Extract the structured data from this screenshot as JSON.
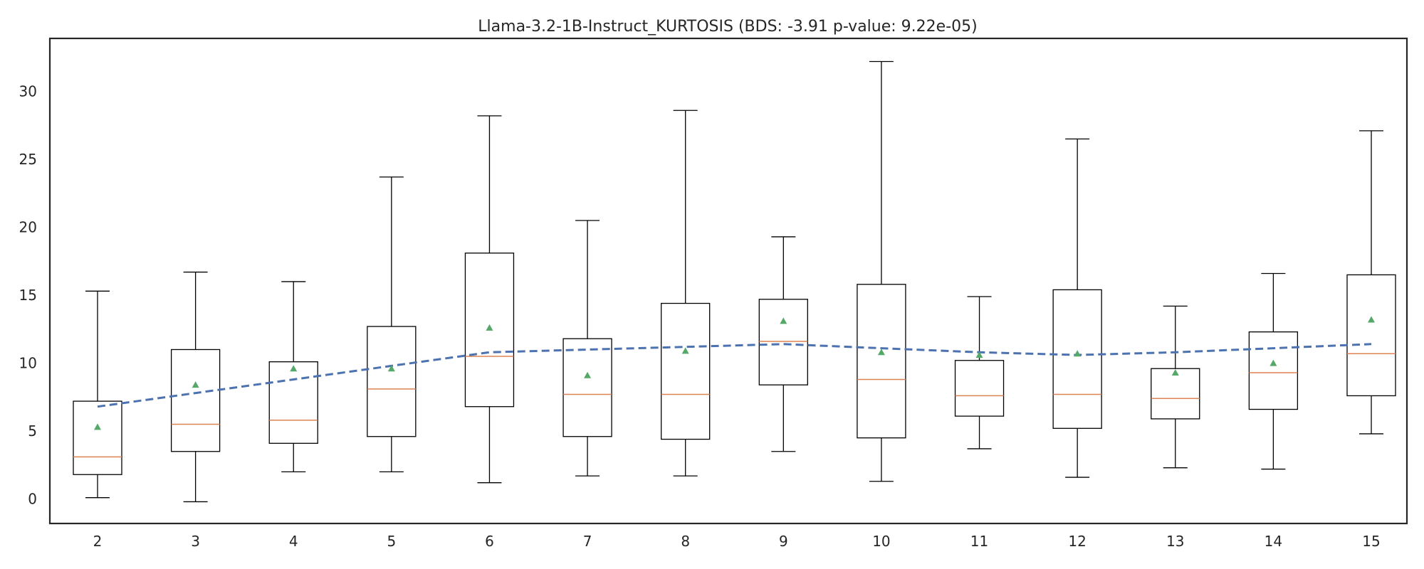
{
  "chart_data": {
    "type": "box",
    "title": "Llama-3.2-1B-Instruct_KURTOSIS (BDS: -3.91 p-value: 9.22e-05)",
    "xlabel": "",
    "ylabel": "",
    "ylim": [
      -1.8,
      33.9
    ],
    "yticks": [
      0,
      5,
      10,
      15,
      20,
      25,
      30
    ],
    "grid": false,
    "categories": [
      "2",
      "3",
      "4",
      "5",
      "6",
      "7",
      "8",
      "9",
      "10",
      "11",
      "12",
      "13",
      "14",
      "15"
    ],
    "boxes": [
      {
        "x": "2",
        "whisker_low": 0.1,
        "q1": 1.8,
        "median": 3.1,
        "q3": 7.2,
        "whisker_high": 15.3,
        "mean": 5.3
      },
      {
        "x": "3",
        "whisker_low": -0.2,
        "q1": 3.5,
        "median": 5.5,
        "q3": 11.0,
        "whisker_high": 16.7,
        "mean": 8.4
      },
      {
        "x": "4",
        "whisker_low": 2.0,
        "q1": 4.1,
        "median": 5.8,
        "q3": 10.1,
        "whisker_high": 16.0,
        "mean": 9.6
      },
      {
        "x": "5",
        "whisker_low": 2.0,
        "q1": 4.6,
        "median": 8.1,
        "q3": 12.7,
        "whisker_high": 23.7,
        "mean": 9.6
      },
      {
        "x": "6",
        "whisker_low": 1.2,
        "q1": 6.8,
        "median": 10.5,
        "q3": 18.1,
        "whisker_high": 28.2,
        "mean": 12.6
      },
      {
        "x": "7",
        "whisker_low": 1.7,
        "q1": 4.6,
        "median": 7.7,
        "q3": 11.8,
        "whisker_high": 20.5,
        "mean": 9.1
      },
      {
        "x": "8",
        "whisker_low": 1.7,
        "q1": 4.4,
        "median": 7.7,
        "q3": 14.4,
        "whisker_high": 28.6,
        "mean": 10.9
      },
      {
        "x": "9",
        "whisker_low": 3.5,
        "q1": 8.4,
        "median": 11.6,
        "q3": 14.7,
        "whisker_high": 19.3,
        "mean": 13.1
      },
      {
        "x": "10",
        "whisker_low": 1.3,
        "q1": 4.5,
        "median": 8.8,
        "q3": 15.8,
        "whisker_high": 32.2,
        "mean": 10.8
      },
      {
        "x": "11",
        "whisker_low": 3.7,
        "q1": 6.1,
        "median": 7.6,
        "q3": 10.2,
        "whisker_high": 14.9,
        "mean": 10.6
      },
      {
        "x": "12",
        "whisker_low": 1.6,
        "q1": 5.2,
        "median": 7.7,
        "q3": 15.4,
        "whisker_high": 26.5,
        "mean": 10.7
      },
      {
        "x": "13",
        "whisker_low": 2.3,
        "q1": 5.9,
        "median": 7.4,
        "q3": 9.6,
        "whisker_high": 14.2,
        "mean": 9.3
      },
      {
        "x": "14",
        "whisker_low": 2.2,
        "q1": 6.6,
        "median": 9.3,
        "q3": 12.3,
        "whisker_high": 16.6,
        "mean": 10.0
      },
      {
        "x": "15",
        "whisker_low": 4.8,
        "q1": 7.6,
        "median": 10.7,
        "q3": 16.5,
        "whisker_high": 27.1,
        "mean": 13.2
      }
    ],
    "trend_line": {
      "style": "dashed",
      "values": [
        6.8,
        7.8,
        8.8,
        9.8,
        10.8,
        11.0,
        11.2,
        11.4,
        11.1,
        10.8,
        10.6,
        10.8,
        11.1,
        11.4
      ]
    },
    "colors": {
      "box": "#000000",
      "median": "#dd8452",
      "mean_marker": "#55a868",
      "trend_line": "#4c72b0",
      "text": "#262626"
    }
  }
}
